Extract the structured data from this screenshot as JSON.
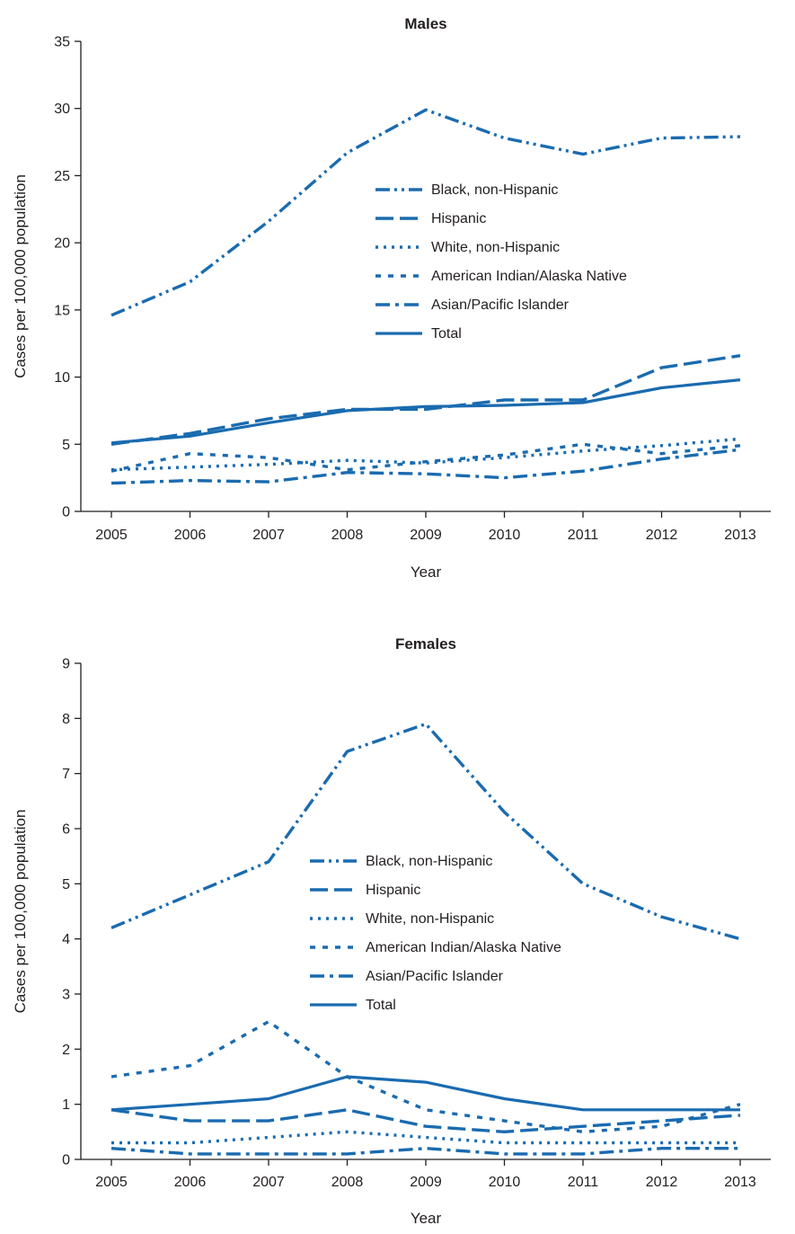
{
  "figure": {
    "line_color": "#1a6bb0",
    "axis_color": "#231f20"
  },
  "chart_data": [
    {
      "type": "line",
      "title": "Males",
      "xlabel": "Year",
      "ylabel": "Cases per 100,000 population",
      "categories": [
        "2005",
        "2006",
        "2007",
        "2008",
        "2009",
        "2010",
        "2011",
        "2012",
        "2013"
      ],
      "ylim": [
        0,
        35
      ],
      "yticks": [
        0,
        5,
        10,
        15,
        20,
        25,
        30,
        35
      ],
      "grid": false,
      "legend_position": "center",
      "series": [
        {
          "name": "Black, non-Hispanic",
          "dash": "dash-dot-dot",
          "values": [
            14.6,
            17.1,
            21.6,
            26.7,
            29.9,
            27.8,
            26.6,
            27.8,
            27.9
          ]
        },
        {
          "name": "Hispanic",
          "dash": "long-dash",
          "values": [
            5.0,
            5.8,
            6.9,
            7.6,
            7.6,
            8.3,
            8.3,
            10.7,
            11.6
          ]
        },
        {
          "name": "White, non-Hispanic",
          "dash": "dotted",
          "values": [
            3.1,
            3.3,
            3.5,
            3.8,
            3.6,
            4.0,
            4.5,
            4.9,
            5.4
          ]
        },
        {
          "name": "American Indian/Alaska Native",
          "dash": "short-dash",
          "values": [
            3.0,
            4.3,
            4.0,
            3.1,
            3.7,
            4.2,
            5.0,
            4.3,
            4.9
          ]
        },
        {
          "name": "Asian/Pacific Islander",
          "dash": "dash-dot",
          "values": [
            2.1,
            2.3,
            2.2,
            2.9,
            2.8,
            2.5,
            3.0,
            3.9,
            4.6
          ]
        },
        {
          "name": "Total",
          "dash": "solid",
          "values": [
            5.1,
            5.6,
            6.6,
            7.5,
            7.8,
            7.9,
            8.1,
            9.2,
            9.8
          ]
        }
      ]
    },
    {
      "type": "line",
      "title": "Females",
      "xlabel": "Year",
      "ylabel": "Cases per 100,000 population",
      "categories": [
        "2005",
        "2006",
        "2007",
        "2008",
        "2009",
        "2010",
        "2011",
        "2012",
        "2013"
      ],
      "ylim": [
        0,
        9
      ],
      "yticks": [
        0,
        1,
        2,
        3,
        4,
        5,
        6,
        7,
        8,
        9
      ],
      "grid": false,
      "legend_position": "center",
      "series": [
        {
          "name": "Black, non-Hispanic",
          "dash": "dash-dot-dot",
          "values": [
            4.2,
            4.8,
            5.4,
            7.4,
            7.9,
            6.3,
            5.0,
            4.4,
            4.0
          ]
        },
        {
          "name": "Hispanic",
          "dash": "long-dash",
          "values": [
            0.9,
            0.7,
            0.7,
            0.9,
            0.6,
            0.5,
            0.6,
            0.7,
            0.8
          ]
        },
        {
          "name": "White, non-Hispanic",
          "dash": "dotted",
          "values": [
            0.3,
            0.3,
            0.4,
            0.5,
            0.4,
            0.3,
            0.3,
            0.3,
            0.3
          ]
        },
        {
          "name": "American Indian/Alaska Native",
          "dash": "short-dash",
          "values": [
            1.5,
            1.7,
            2.5,
            1.5,
            0.9,
            0.7,
            0.5,
            0.6,
            1.0
          ]
        },
        {
          "name": "Asian/Pacific Islander",
          "dash": "dash-dot",
          "values": [
            0.2,
            0.1,
            0.1,
            0.1,
            0.2,
            0.1,
            0.1,
            0.2,
            0.2
          ]
        },
        {
          "name": "Total",
          "dash": "solid",
          "values": [
            0.9,
            1.0,
            1.1,
            1.5,
            1.4,
            1.1,
            0.9,
            0.9,
            0.9
          ]
        }
      ]
    }
  ]
}
